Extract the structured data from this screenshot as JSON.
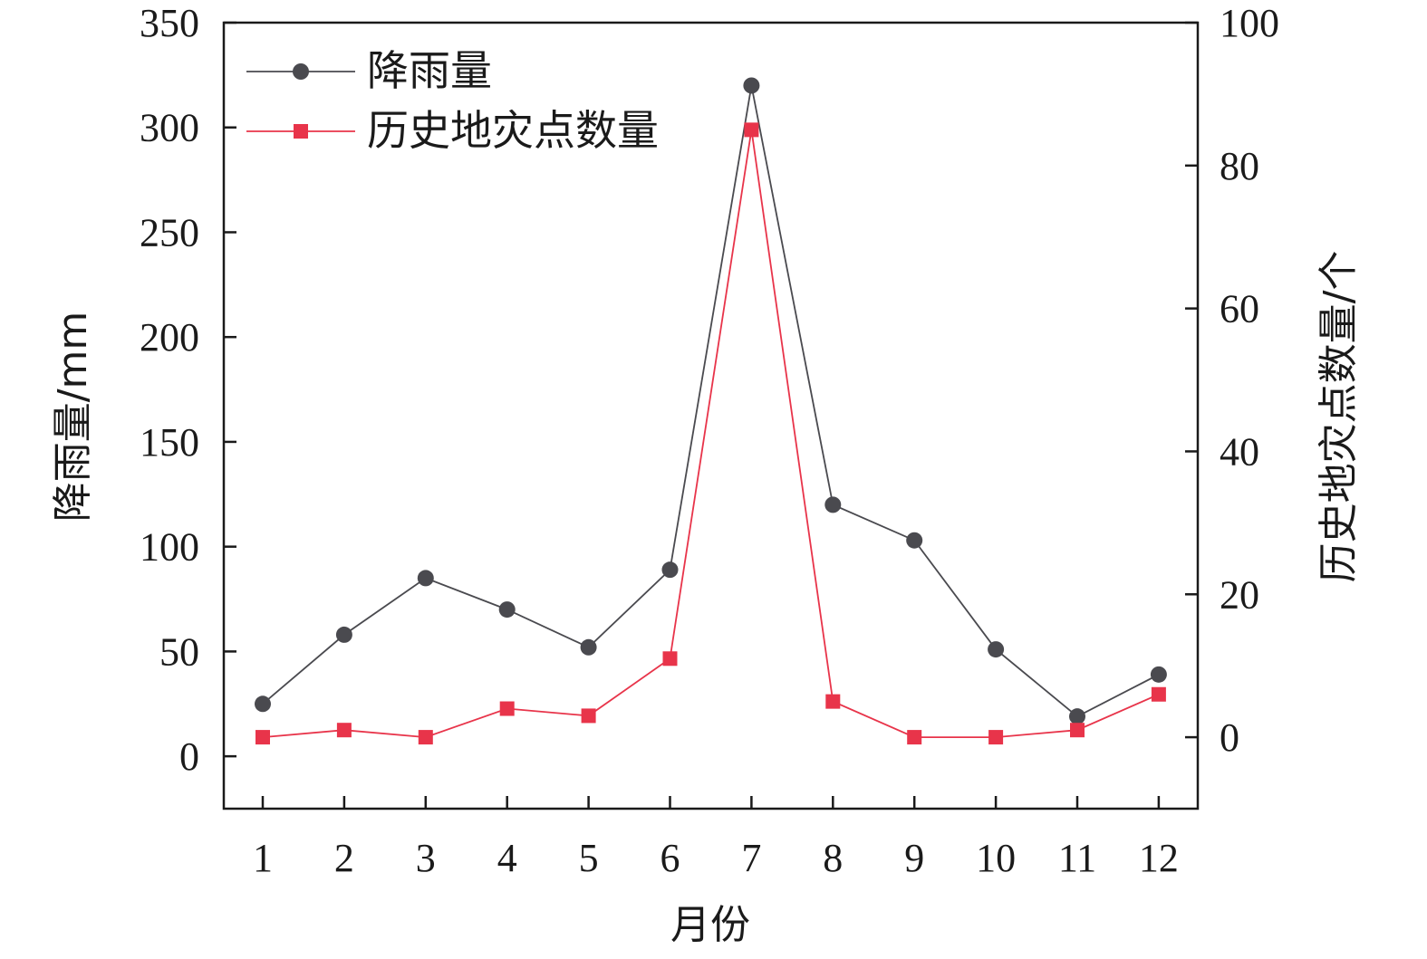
{
  "chart_data": {
    "type": "line",
    "categories": [
      "1",
      "2",
      "3",
      "4",
      "5",
      "6",
      "7",
      "8",
      "9",
      "10",
      "11",
      "12"
    ],
    "xlabel": "月份",
    "ylabel_left": "降雨量/mm",
    "ylabel_right": "历史地灾点数量/个",
    "ylim_left": [
      -25,
      350
    ],
    "ylim_right": [
      -10,
      100
    ],
    "yticks_left": [
      0,
      50,
      100,
      150,
      200,
      250,
      300,
      350
    ],
    "yticks_right": [
      0,
      20,
      40,
      60,
      80,
      100
    ],
    "legend_position": "top-left",
    "grid": false,
    "series": [
      {
        "name": "降雨量",
        "axis": "left",
        "color": "#4a4a4f",
        "marker": "circle",
        "values": [
          25,
          58,
          85,
          70,
          52,
          89,
          320,
          120,
          103,
          51,
          19,
          39
        ]
      },
      {
        "name": "历史地灾点数量",
        "axis": "right",
        "color": "#e8344a",
        "marker": "square",
        "values": [
          0,
          1,
          0,
          4,
          3,
          11,
          85,
          5,
          0,
          0,
          1,
          6
        ]
      }
    ]
  }
}
